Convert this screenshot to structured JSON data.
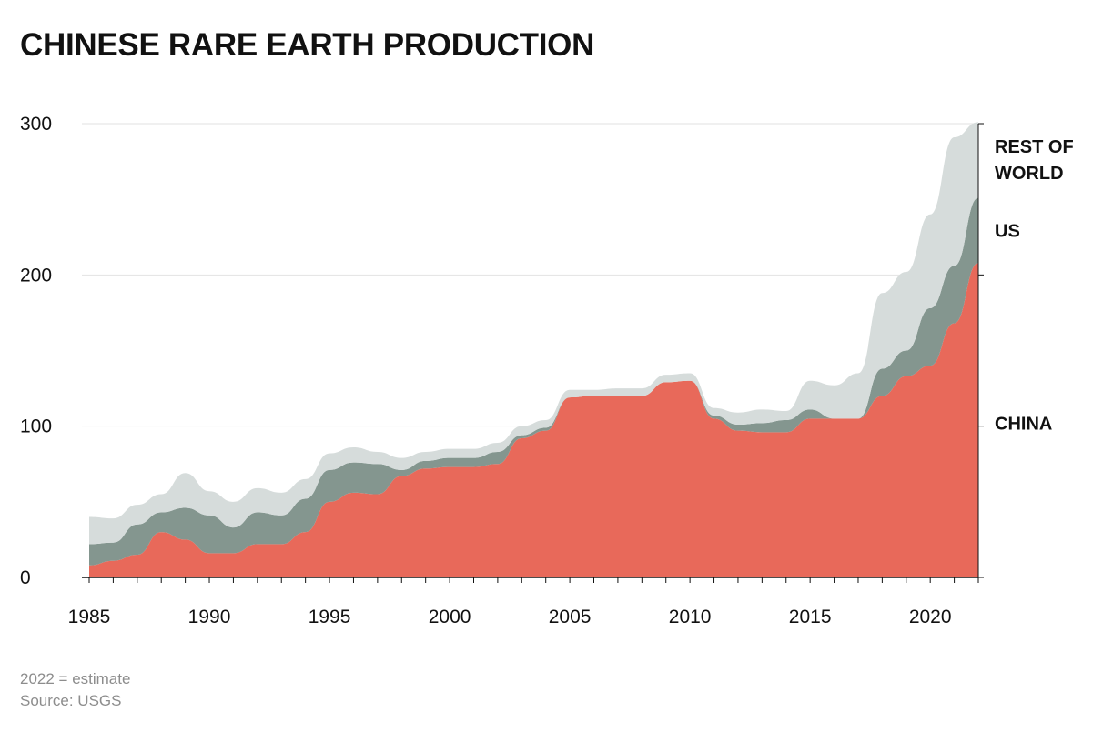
{
  "title": "CHINESE RARE EARTH PRODUCTION",
  "footnotes": [
    "2022 = estimate",
    "Source: USGS"
  ],
  "chart_data": {
    "type": "area",
    "stacked": true,
    "x": [
      1985,
      1986,
      1987,
      1988,
      1989,
      1990,
      1991,
      1992,
      1993,
      1994,
      1995,
      1996,
      1997,
      1998,
      1999,
      2000,
      2001,
      2002,
      2003,
      2004,
      2005,
      2006,
      2007,
      2008,
      2009,
      2010,
      2011,
      2012,
      2013,
      2014,
      2015,
      2016,
      2017,
      2018,
      2019,
      2020,
      2021,
      2022
    ],
    "xticks": [
      1985,
      1990,
      1995,
      2000,
      2005,
      2010,
      2015,
      2020
    ],
    "ylim": [
      0,
      300
    ],
    "yticks": [
      0,
      100,
      200,
      300
    ],
    "grid": true,
    "legend": "right",
    "series": [
      {
        "name": "CHINA",
        "color": "#e8695a",
        "values": [
          8,
          11,
          15,
          30,
          25,
          16,
          16,
          22,
          22,
          30,
          50,
          56,
          55,
          67,
          72,
          73,
          73,
          75,
          92,
          97,
          119,
          120,
          120,
          120,
          129,
          130,
          105,
          97,
          96,
          96,
          105,
          105,
          105,
          120,
          133,
          140,
          168,
          208
        ]
      },
      {
        "name": "US",
        "color": "#84968f",
        "values": [
          14,
          12,
          20,
          13,
          21,
          25,
          17,
          21,
          19,
          22,
          21,
          20,
          20,
          4,
          5,
          6,
          6,
          8,
          2,
          2,
          0,
          0,
          0,
          0,
          0,
          0,
          2,
          4,
          6,
          8,
          6,
          0,
          0,
          18,
          17,
          38,
          38,
          43
        ]
      },
      {
        "name": "REST OF WORLD",
        "color": "#d6dcdb",
        "values": [
          18,
          16,
          13,
          12,
          23,
          16,
          17,
          16,
          15,
          13,
          11,
          10,
          8,
          8,
          6,
          6,
          6,
          6,
          6,
          5,
          5,
          4,
          5,
          5,
          5,
          5,
          5,
          8,
          9,
          6,
          19,
          22,
          30,
          50,
          52,
          62,
          85,
          50
        ]
      }
    ]
  }
}
